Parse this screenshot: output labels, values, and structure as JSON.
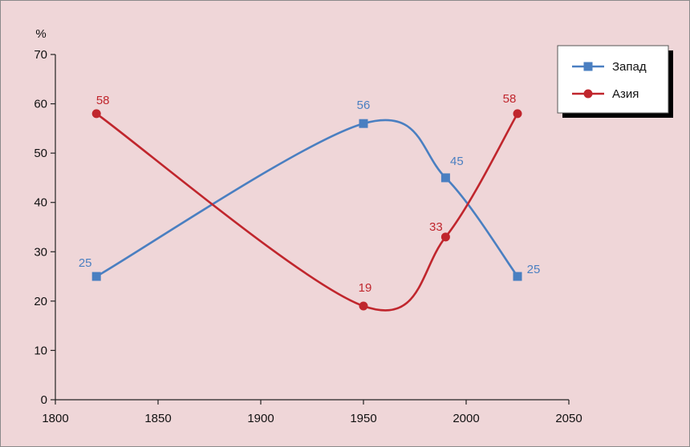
{
  "chart_data": {
    "type": "line",
    "title": "",
    "xlabel": "",
    "ylabel": "%",
    "xlim": [
      1800,
      2050
    ],
    "ylim": [
      0,
      70
    ],
    "x_ticks": [
      1800,
      1850,
      1900,
      1950,
      2000,
      2050
    ],
    "y_ticks": [
      0,
      10,
      20,
      30,
      40,
      50,
      60,
      70
    ],
    "grid": false,
    "legend_position": "top-right",
    "series": [
      {
        "name": "Запад",
        "color": "#4a7fc1",
        "marker": "square",
        "points": [
          {
            "x": 1820,
            "y": 25,
            "label": "25"
          },
          {
            "x": 1950,
            "y": 56,
            "label": "56"
          },
          {
            "x": 1990,
            "y": 45,
            "label": "45"
          },
          {
            "x": 2025,
            "y": 25,
            "label": "25"
          }
        ]
      },
      {
        "name": "Азия",
        "color": "#c0262d",
        "marker": "circle",
        "points": [
          {
            "x": 1820,
            "y": 58,
            "label": "58"
          },
          {
            "x": 1950,
            "y": 19,
            "label": "19"
          },
          {
            "x": 1990,
            "y": 33,
            "label": "33"
          },
          {
            "x": 2025,
            "y": 58,
            "label": "58"
          }
        ]
      }
    ]
  }
}
